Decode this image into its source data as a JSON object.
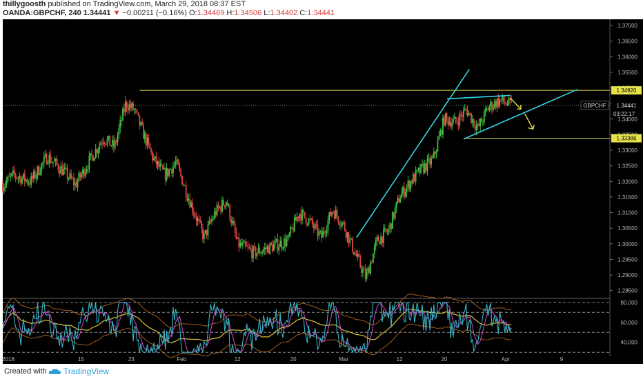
{
  "header": {
    "author": "thillygoosth",
    "published": "published on TradingView.com, March 29, 2018 08:37 EST",
    "symbol": "OANDA:GBPCHF, 240",
    "last": "1.34441",
    "change": "−0.00211 (−0.16%)",
    "o_label": "O:",
    "o_value": "1.34469",
    "h_label": "H:",
    "h_value": "1.34506",
    "l_label": "L:",
    "l_value": "1.34402",
    "c_label": "C:",
    "c_value": "1.34441"
  },
  "footer": {
    "created_with": "Created with",
    "brand": "TradingView"
  },
  "chart_data": [
    {
      "type": "candlestick",
      "symbol": "GBPCHF",
      "timeframe": "240",
      "x_ticks": [
        "2018",
        "15",
        "23",
        "Feb",
        "12",
        "20",
        "Mar",
        "12",
        "20",
        "Apr",
        "9"
      ],
      "y_ticks": [
        "1.37000",
        "1.36500",
        "1.36000",
        "1.35500",
        "1.35000",
        "1.34500",
        "1.34000",
        "1.33500",
        "1.33000",
        "1.32500",
        "1.32000",
        "1.31500",
        "1.31000",
        "1.30500",
        "1.30000",
        "1.29500",
        "1.29000",
        "1.28500"
      ],
      "ylim": [
        1.2825,
        1.372
      ],
      "price_path": [
        [
          0,
          1.319
        ],
        [
          2,
          1.322
        ],
        [
          5,
          1.32
        ],
        [
          8,
          1.328
        ],
        [
          11,
          1.323
        ],
        [
          13,
          1.319
        ],
        [
          15,
          1.325
        ],
        [
          18,
          1.334
        ],
        [
          20,
          1.331
        ],
        [
          22,
          1.345
        ],
        [
          23.5,
          1.343
        ],
        [
          25,
          1.336
        ],
        [
          27,
          1.327
        ],
        [
          29,
          1.322
        ],
        [
          31,
          1.326
        ],
        [
          33,
          1.316
        ],
        [
          36,
          1.302
        ],
        [
          38,
          1.31
        ],
        [
          40,
          1.314
        ],
        [
          42,
          1.3
        ],
        [
          45,
          1.297
        ],
        [
          48,
          1.299
        ],
        [
          51,
          1.301
        ],
        [
          53,
          1.31
        ],
        [
          55,
          1.307
        ],
        [
          57,
          1.302
        ],
        [
          59,
          1.311
        ],
        [
          61,
          1.306
        ],
        [
          63,
          1.297
        ],
        [
          65,
          1.289
        ],
        [
          67,
          1.301
        ],
        [
          69,
          1.304
        ],
        [
          71,
          1.315
        ],
        [
          73,
          1.32
        ],
        [
          75,
          1.324
        ],
        [
          77,
          1.327
        ],
        [
          79,
          1.34
        ],
        [
          81,
          1.339
        ],
        [
          83,
          1.343
        ],
        [
          85,
          1.337
        ],
        [
          87,
          1.344
        ],
        [
          89,
          1.346
        ],
        [
          91,
          1.3444
        ]
      ],
      "last_price_label": "1.34441",
      "symbol_tag": "GBPCHF",
      "countdown": "03:22:17",
      "resistance_label": "1.34920",
      "resistance_value": 1.3492,
      "support_label": "1.33386",
      "support_value": 1.33386,
      "colors": {
        "up": "#3fbf3f",
        "down": "#e04545",
        "trendline": "#33d6e8",
        "level": "#e6e34b",
        "arrow": "#e6e34b",
        "background": "#000000",
        "axis_text": "#b8b8b8"
      }
    },
    {
      "type": "line",
      "indicator": "oscillator with bands",
      "y_ticks": [
        "80.000",
        "60.000",
        "40.000"
      ],
      "ylim": [
        26,
        84
      ],
      "colors": {
        "main": "#3ab6c8",
        "signal": "#d94ad6",
        "mid": "#d8c53a",
        "band": "#a05d1e"
      }
    }
  ]
}
